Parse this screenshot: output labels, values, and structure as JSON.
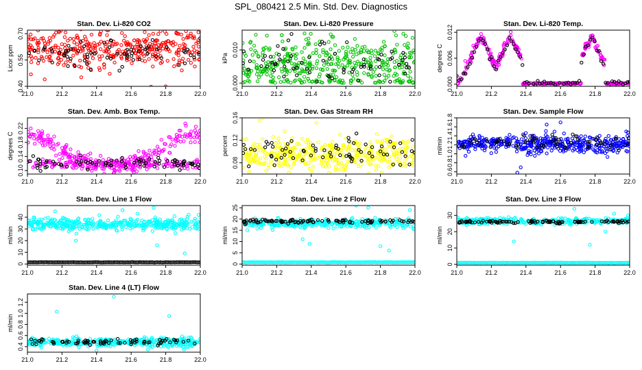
{
  "figure_title": "SPL_080421  2.5 Min. Std. Dev. Diagnostics",
  "colors": {
    "red": "#ff0000",
    "green": "#00c000",
    "magenta": "#ff00ff",
    "yellow": "#ffff00",
    "blue": "#0000ff",
    "cyan": "#00ffff",
    "black": "#000000"
  },
  "chart_data": [
    {
      "type": "scatter",
      "title": "Stan. Dev. Li-820 CO2",
      "ylabel": "Licor ppm",
      "xlim": [
        21.0,
        22.0
      ],
      "ylim": [
        0.4,
        0.72
      ],
      "xticks": [
        "21.0",
        "21.2",
        "21.4",
        "21.6",
        "21.8",
        "22.0"
      ],
      "yticks": [
        "0.40",
        "0.55",
        "0.70"
      ],
      "ytick_values": [
        0.4,
        0.55,
        0.7
      ],
      "series": [
        {
          "name": "main",
          "color": "red",
          "model": {
            "kind": "band",
            "n": 380,
            "center": 0.62,
            "spread": 0.055,
            "outliers": [
              [
                21.8,
                0.4
              ],
              [
                21.95,
                0.73
              ],
              [
                21.46,
                0.72
              ],
              [
                21.1,
                0.44
              ]
            ]
          }
        },
        {
          "name": "reference",
          "color": "black",
          "model": {
            "kind": "band",
            "n": 70,
            "center": 0.59,
            "spread": 0.04
          }
        }
      ]
    },
    {
      "type": "scatter",
      "title": "Stan. Dev. Li-820 Pressure",
      "ylabel": "kPa",
      "xlim": [
        21.0,
        22.0
      ],
      "ylim": [
        -0.001,
        0.016
      ],
      "xticks": [
        "21.0",
        "21.2",
        "21.4",
        "21.6",
        "21.8",
        "22.0"
      ],
      "yticks": [
        "0.000",
        "0.010"
      ],
      "ytick_values": [
        0.0,
        0.01
      ],
      "series": [
        {
          "name": "main",
          "color": "green",
          "model": {
            "kind": "band",
            "n": 420,
            "center": 0.0055,
            "spread": 0.0045,
            "clip": 0.0,
            "outliers": [
              [
                21.05,
                0.0125
              ],
              [
                21.23,
                0.0145
              ],
              [
                21.52,
                0.014
              ],
              [
                21.82,
                0.0125
              ],
              [
                21.96,
                0.012
              ]
            ]
          }
        },
        {
          "name": "reference",
          "color": "black",
          "model": {
            "kind": "band",
            "n": 70,
            "center": 0.0055,
            "spread": 0.003,
            "clip": 0.0
          }
        }
      ]
    },
    {
      "type": "scatter",
      "title": "Stan. Dev. Li-820 Temp.",
      "ylabel": "degrees C",
      "xlim": [
        21.0,
        22.0
      ],
      "ylim": [
        -0.0005,
        0.0125
      ],
      "xticks": [
        "21.0",
        "21.2",
        "21.4",
        "21.6",
        "21.8",
        "22.0"
      ],
      "yticks": [
        "0.000",
        "0.006",
        "0.012"
      ],
      "ytick_values": [
        0.0,
        0.006,
        0.012
      ],
      "series": [
        {
          "name": "main",
          "color": "magenta",
          "model": {
            "kind": "wave",
            "n": 380,
            "peaks": [
              21.14,
              21.31,
              21.78
            ],
            "zero_ranges": [
              [
                21.38,
                21.72
              ],
              [
                21.86,
                22.0
              ]
            ]
          }
        },
        {
          "name": "reference",
          "color": "black",
          "model": {
            "kind": "wave_ref",
            "n": 80
          }
        }
      ]
    },
    {
      "type": "scatter",
      "title": "Stan. Dev. Amb. Box Temp.",
      "ylabel": "degrees C",
      "xlim": [
        21.0,
        22.0
      ],
      "ylim": [
        0.09,
        0.25
      ],
      "xticks": [
        "21.0",
        "21.2",
        "21.4",
        "21.6",
        "21.8",
        "22.0"
      ],
      "yticks": [
        "0.10",
        "0.14",
        "0.18",
        "0.22"
      ],
      "ytick_values": [
        0.1,
        0.14,
        0.18,
        0.22
      ],
      "series": [
        {
          "name": "main",
          "color": "magenta",
          "model": {
            "kind": "vshape",
            "n": 420
          }
        },
        {
          "name": "reference",
          "color": "black",
          "model": {
            "kind": "band",
            "n": 80,
            "center": 0.122,
            "spread": 0.008
          }
        }
      ]
    },
    {
      "type": "scatter",
      "title": "Stan. Dev. Gas Stream RH",
      "ylabel": "percent",
      "xlim": [
        21.0,
        22.0
      ],
      "ylim": [
        0.06,
        0.16
      ],
      "xticks": [
        "21.0",
        "21.2",
        "21.4",
        "21.6",
        "21.8",
        "22.0"
      ],
      "yticks": [
        "0.08",
        "0.12",
        "0.16"
      ],
      "ytick_values": [
        0.08,
        0.12,
        0.16
      ],
      "series": [
        {
          "name": "main",
          "color": "yellow",
          "model": {
            "kind": "band",
            "n": 400,
            "center": 0.095,
            "spread": 0.015,
            "outliers": [
              [
                21.1,
                0.155
              ],
              [
                21.12,
                0.16
              ]
            ]
          }
        },
        {
          "name": "reference",
          "color": "black",
          "model": {
            "kind": "band",
            "n": 70,
            "center": 0.098,
            "spread": 0.012
          }
        }
      ]
    },
    {
      "type": "scatter",
      "title": "Stan. Dev. Sample Flow",
      "ylabel": "ml/min",
      "xlim": [
        21.0,
        22.0
      ],
      "ylim": [
        0.55,
        1.8
      ],
      "xticks": [
        "21.0",
        "21.2",
        "21.4",
        "21.6",
        "21.8",
        "22.0"
      ],
      "yticks": [
        "0.6",
        "0.8",
        "1.0",
        "1.2",
        "1.4",
        "1.6",
        "1.8"
      ],
      "ytick_values": [
        0.6,
        0.8,
        1.0,
        1.2,
        1.4,
        1.6,
        1.8
      ],
      "series": [
        {
          "name": "main",
          "color": "blue",
          "model": {
            "kind": "band",
            "n": 420,
            "center": 1.22,
            "spread": 0.1,
            "outliers": [
              [
                21.35,
                0.58
              ],
              [
                21.37,
                0.7
              ],
              [
                21.52,
                1.65
              ],
              [
                21.6,
                1.7
              ]
            ]
          }
        },
        {
          "name": "reference",
          "color": "black",
          "model": {
            "kind": "band",
            "n": 70,
            "center": 1.25,
            "spread": 0.08
          }
        }
      ]
    },
    {
      "type": "scatter",
      "title": "Stan. Dev. Line 1 Flow",
      "ylabel": "ml/min",
      "xlim": [
        21.0,
        22.0
      ],
      "ylim": [
        -1,
        50
      ],
      "xticks": [
        "21.0",
        "21.2",
        "21.4",
        "21.6",
        "21.8",
        "22.0"
      ],
      "yticks": [
        "0",
        "10",
        "20",
        "30",
        "40"
      ],
      "ytick_values": [
        0,
        10,
        20,
        30,
        40
      ],
      "series": [
        {
          "name": "main",
          "color": "cyan",
          "model": {
            "kind": "band",
            "n": 420,
            "center": 34,
            "spread": 2.5,
            "outliers": [
              [
                21.16,
                45
              ],
              [
                21.28,
                20
              ],
              [
                21.55,
                46
              ],
              [
                21.73,
                48
              ],
              [
                21.75,
                16
              ],
              [
                21.91,
                9
              ],
              [
                21.99,
                42
              ]
            ]
          }
        },
        {
          "name": "reference",
          "color": "black",
          "model": {
            "kind": "line",
            "n": 110,
            "value": 1.5
          }
        }
      ]
    },
    {
      "type": "scatter",
      "title": "Stan. Dev. Line 2 Flow",
      "ylabel": "ml/min",
      "xlim": [
        21.0,
        22.0
      ],
      "ylim": [
        -0.5,
        26
      ],
      "xticks": [
        "21.0",
        "21.2",
        "21.4",
        "21.6",
        "21.8",
        "22.0"
      ],
      "yticks": [
        "0",
        "5",
        "10",
        "15",
        "20",
        "25"
      ],
      "ytick_values": [
        0,
        5,
        10,
        15,
        20,
        25
      ],
      "series": [
        {
          "name": "main",
          "color": "cyan",
          "model": {
            "kind": "band",
            "n": 300,
            "center": 18,
            "spread": 1.0,
            "outliers": [
              [
                21.03,
                15
              ],
              [
                21.35,
                11
              ],
              [
                21.39,
                9
              ],
              [
                21.66,
                26
              ],
              [
                21.73,
                25
              ],
              [
                21.8,
                8
              ],
              [
                21.85,
                6
              ],
              [
                21.97,
                24
              ]
            ]
          }
        },
        {
          "name": "floor",
          "color": "cyan",
          "model": {
            "kind": "line",
            "n": 140,
            "value": 0.8
          }
        },
        {
          "name": "reference",
          "color": "black",
          "model": {
            "kind": "band",
            "n": 100,
            "center": 19,
            "spread": 0.4
          }
        }
      ]
    },
    {
      "type": "scatter",
      "title": "Stan. Dev. Line 3 Flow",
      "ylabel": "ml/min",
      "xlim": [
        21.0,
        22.0
      ],
      "ylim": [
        -0.5,
        36
      ],
      "xticks": [
        "21.0",
        "21.2",
        "21.4",
        "21.6",
        "21.8",
        "22.0"
      ],
      "yticks": [
        "0",
        "10",
        "20",
        "30"
      ],
      "ytick_values": [
        0,
        10,
        20,
        30
      ],
      "series": [
        {
          "name": "main",
          "color": "cyan",
          "model": {
            "kind": "band",
            "n": 300,
            "center": 26.5,
            "spread": 1.0,
            "outliers": [
              [
                21.33,
                14
              ],
              [
                21.68,
                34
              ],
              [
                21.77,
                12
              ],
              [
                21.86,
                20
              ],
              [
                21.91,
                31
              ],
              [
                21.99,
                30
              ]
            ]
          }
        },
        {
          "name": "floor",
          "color": "cyan",
          "model": {
            "kind": "line",
            "n": 140,
            "value": 1.0
          }
        },
        {
          "name": "reference",
          "color": "black",
          "model": {
            "kind": "band",
            "n": 100,
            "center": 26,
            "spread": 0.4
          }
        }
      ]
    },
    {
      "type": "scatter",
      "title": "Stan. Dev. Line 4 (LT) Flow",
      "ylabel": "ml/min",
      "xlim": [
        21.0,
        22.0
      ],
      "ylim": [
        0.3,
        1.35
      ],
      "xticks": [
        "21.0",
        "21.2",
        "21.4",
        "21.6",
        "21.8",
        "22.0"
      ],
      "yticks": [
        "0.4",
        "0.6",
        "0.8",
        "1.0",
        "1.2"
      ],
      "ytick_values": [
        0.4,
        0.6,
        0.8,
        1.0,
        1.2
      ],
      "series": [
        {
          "name": "main",
          "color": "cyan",
          "model": {
            "kind": "band",
            "n": 380,
            "center": 0.48,
            "spread": 0.04,
            "outliers": [
              [
                21.17,
                1.03
              ],
              [
                21.5,
                1.3
              ],
              [
                21.82,
                0.95
              ],
              [
                21.4,
                0.33
              ]
            ]
          }
        },
        {
          "name": "reference",
          "color": "black",
          "model": {
            "kind": "band",
            "n": 80,
            "center": 0.48,
            "spread": 0.03
          }
        }
      ]
    }
  ]
}
